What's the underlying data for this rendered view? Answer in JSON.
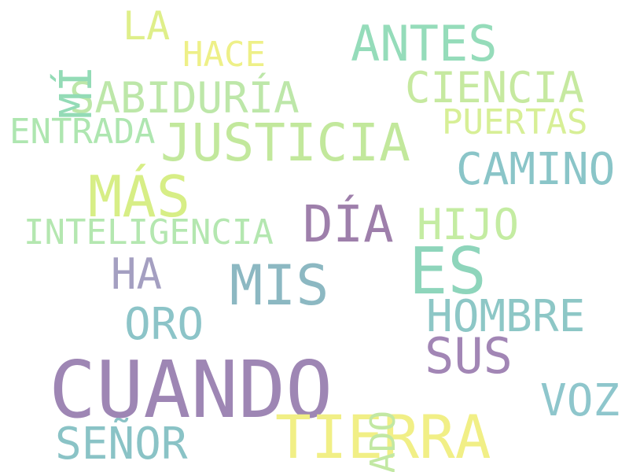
{
  "words": [
    {
      "id": "cuando",
      "text": "CUANDO",
      "color": "#9e86b4"
    },
    {
      "id": "es",
      "text": "ES",
      "color": "#8ed5bb"
    },
    {
      "id": "tierra",
      "text": "TIERRA",
      "color": "#f1ef86"
    },
    {
      "id": "mas",
      "text": "MÁS",
      "color": "#d7ee86"
    },
    {
      "id": "mis",
      "text": "MIS",
      "color": "#8cb8c2"
    },
    {
      "id": "justicia",
      "text": "JUSTICIA",
      "color": "#c2e89c"
    },
    {
      "id": "dia",
      "text": "DÍA",
      "color": "#9e7fab"
    },
    {
      "id": "antes",
      "text": "ANTES",
      "color": "#95dcba"
    },
    {
      "id": "sus",
      "text": "SUS",
      "color": "#a286b5"
    },
    {
      "id": "hijo",
      "text": "HIJO",
      "color": "#c4eca2"
    },
    {
      "id": "camino",
      "text": "CAMINO",
      "color": "#8ac5c8"
    },
    {
      "id": "hombre",
      "text": "HOMBRE",
      "color": "#8dc7c6"
    },
    {
      "id": "oro",
      "text": "ORO",
      "color": "#8cc4c8"
    },
    {
      "id": "voz",
      "text": "VOZ",
      "color": "#8ec6cc"
    },
    {
      "id": "senor",
      "text": "SEÑOR",
      "color": "#8ac3c6"
    },
    {
      "id": "ciencia",
      "text": "CIENCIA",
      "color": "#c6e9a0"
    },
    {
      "id": "sabiduria",
      "text": "SABIDURÍA",
      "color": "#bde7a9"
    },
    {
      "id": "ha",
      "text": "HA",
      "color": "#a49fc1"
    },
    {
      "id": "la",
      "text": "LA",
      "color": "#dfef8a"
    },
    {
      "id": "inteligencia",
      "text": "INTELIGENCIA",
      "color": "#b4e7b0"
    },
    {
      "id": "entrada",
      "text": "ENTRADA",
      "color": "#aee6b0"
    },
    {
      "id": "puertas",
      "text": "PUERTAS",
      "color": "#d7ef96"
    },
    {
      "id": "hace",
      "text": "HACE",
      "color": "#eef088"
    },
    {
      "id": "mi",
      "text": "MÍ",
      "color": "#93dbb6",
      "orientation": "vertical"
    },
    {
      "id": "lado",
      "text": "LADO",
      "color": "#c2e8a3",
      "orientation": "vertical"
    }
  ]
}
